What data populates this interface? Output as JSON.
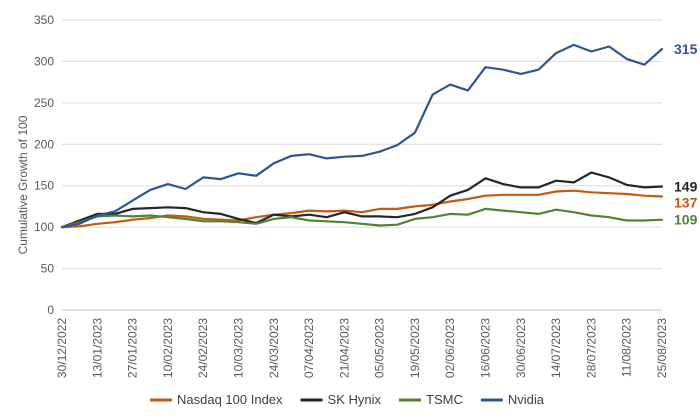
{
  "chart_data": {
    "type": "line",
    "title": "",
    "xlabel": "",
    "ylabel": "Cumulative Growth of 100",
    "ylim": [
      0,
      350
    ],
    "yticks": [
      0,
      50,
      100,
      150,
      200,
      250,
      300,
      350
    ],
    "grid": "horizontal",
    "legend_position": "bottom",
    "x_ticks": [
      "30/12/2022",
      "13/01/2023",
      "27/01/2023",
      "10/02/2023",
      "24/02/2023",
      "10/03/2023",
      "24/03/2023",
      "07/04/2023",
      "21/04/2023",
      "05/05/2023",
      "19/05/2023",
      "02/06/2023",
      "16/06/2023",
      "30/06/2023",
      "14/07/2023",
      "28/07/2023",
      "11/08/2023",
      "25/08/2023"
    ],
    "x": [
      "30/12/2022",
      "06/01/2023",
      "13/01/2023",
      "20/01/2023",
      "27/01/2023",
      "03/02/2023",
      "10/02/2023",
      "17/02/2023",
      "24/02/2023",
      "03/03/2023",
      "10/03/2023",
      "17/03/2023",
      "24/03/2023",
      "31/03/2023",
      "07/04/2023",
      "14/04/2023",
      "21/04/2023",
      "28/04/2023",
      "05/05/2023",
      "12/05/2023",
      "19/05/2023",
      "26/05/2023",
      "02/06/2023",
      "09/06/2023",
      "16/06/2023",
      "23/06/2023",
      "30/06/2023",
      "07/07/2023",
      "14/07/2023",
      "21/07/2023",
      "28/07/2023",
      "04/08/2023",
      "11/08/2023",
      "18/08/2023",
      "25/08/2023"
    ],
    "series": [
      {
        "name": "Nasdaq 100 Index",
        "color": "#C55A11",
        "end_label": "137",
        "values": [
          100,
          101,
          104,
          106,
          109,
          111,
          114,
          113,
          110,
          109,
          108,
          112,
          115,
          117,
          120,
          119,
          120,
          118,
          122,
          122,
          125,
          127,
          131,
          134,
          138,
          139,
          139,
          139,
          143,
          144,
          142,
          141,
          140,
          138,
          137
        ]
      },
      {
        "name": "SK Hynix",
        "color": "#262626",
        "end_label": "149",
        "values": [
          100,
          108,
          116,
          116,
          122,
          123,
          124,
          123,
          118,
          116,
          110,
          105,
          115,
          113,
          115,
          112,
          118,
          113,
          113,
          112,
          116,
          124,
          138,
          145,
          159,
          152,
          148,
          148,
          156,
          154,
          166,
          160,
          151,
          148,
          149
        ]
      },
      {
        "name": "TSMC",
        "color": "#548235",
        "end_label": "109",
        "values": [
          100,
          106,
          113,
          114,
          113,
          114,
          112,
          110,
          107,
          107,
          106,
          104,
          110,
          112,
          108,
          107,
          106,
          104,
          102,
          103,
          110,
          112,
          116,
          115,
          122,
          120,
          118,
          116,
          121,
          118,
          114,
          112,
          108,
          108,
          109
        ]
      },
      {
        "name": "Nvidia",
        "color": "#2F5597",
        "end_label": "315",
        "values": [
          100,
          104,
          114,
          119,
          132,
          145,
          152,
          146,
          160,
          158,
          165,
          162,
          177,
          186,
          188,
          183,
          185,
          186,
          191,
          199,
          214,
          260,
          272,
          265,
          293,
          290,
          285,
          290,
          310,
          320,
          312,
          318,
          303,
          296,
          315
        ]
      }
    ]
  }
}
